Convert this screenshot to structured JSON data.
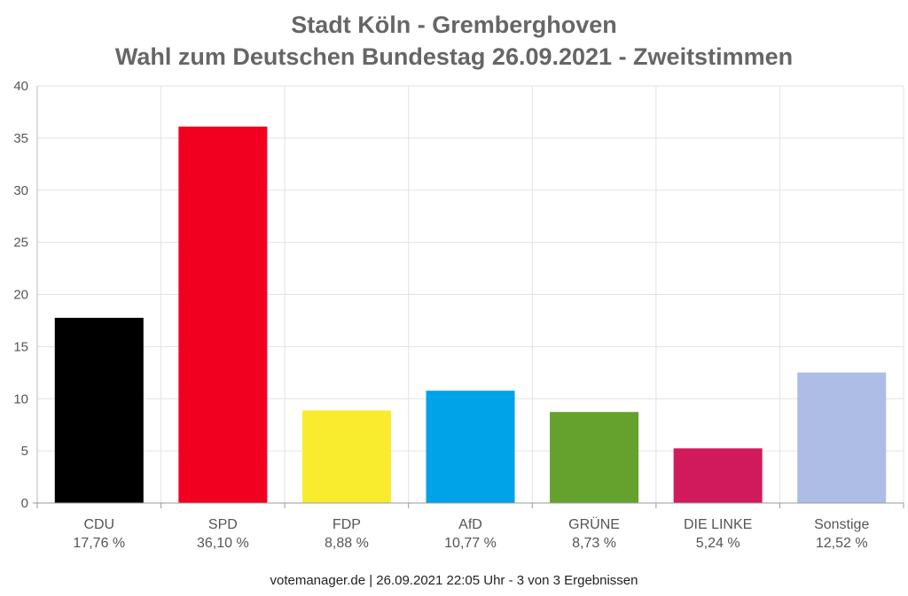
{
  "title_line1": "Stadt Köln - Gremberghoven",
  "title_line2": "Wahl zum Deutschen Bundestag 26.09.2021  - Zweitstimmen",
  "footer": "votemanager.de | 26.09.2021 22:05 Uhr - 3 von 3 Ergebnissen",
  "chart_data": {
    "type": "bar",
    "title": "Stadt Köln - Gremberghoven / Wahl zum Deutschen Bundestag 26.09.2021  - Zweitstimmen",
    "categories": [
      "CDU",
      "SPD",
      "FDP",
      "AfD",
      "GRÜNE",
      "DIE LINKE",
      "Sonstige"
    ],
    "values": [
      17.76,
      36.1,
      8.88,
      10.77,
      8.73,
      5.24,
      12.52
    ],
    "value_labels": [
      "17,76 %",
      "36,10 %",
      "8,88 %",
      "10,77 %",
      "8,73 %",
      "5,24 %",
      "12,52 %"
    ],
    "colors": [
      "#000000",
      "#f2001f",
      "#f9ec2f",
      "#00a3e7",
      "#64a12d",
      "#d01a5c",
      "#adbde6"
    ],
    "yticks": [
      0,
      5,
      10,
      15,
      20,
      25,
      30,
      35,
      40
    ],
    "ylim": [
      0,
      40
    ],
    "grid": true,
    "xlabel": "",
    "ylabel": ""
  }
}
